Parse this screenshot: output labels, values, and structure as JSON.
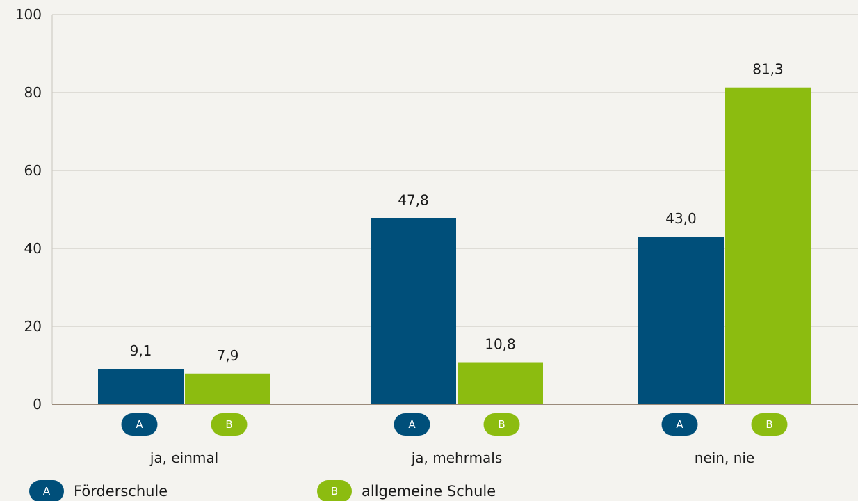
{
  "chart_data": {
    "type": "bar",
    "categories": [
      "ja, einmal",
      "ja, mehrmals",
      "nein, nie"
    ],
    "series": [
      {
        "name": "Förderschule",
        "badge": "A",
        "color": "#004f7a",
        "values": [
          9.1,
          47.8,
          43.0
        ],
        "labels": [
          "9,1",
          "47,8",
          "43,0"
        ]
      },
      {
        "name": "allgemeine Schule",
        "badge": "B",
        "color": "#8cbc10",
        "values": [
          7.9,
          10.8,
          81.3
        ],
        "labels": [
          "7,9",
          "10,8",
          "81,3"
        ]
      }
    ],
    "ylim": [
      0,
      100
    ],
    "yticks": [
      0,
      20,
      40,
      60,
      80,
      100
    ],
    "grid": true,
    "legend_position": "bottom-left"
  }
}
